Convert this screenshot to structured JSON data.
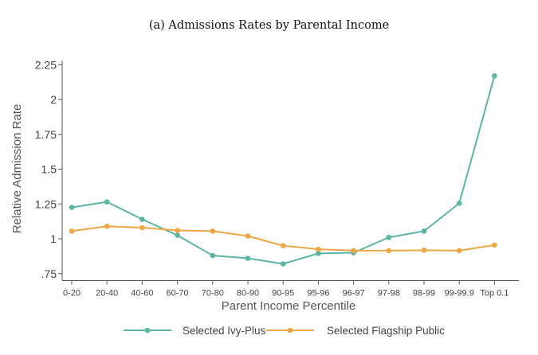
{
  "chart_data": {
    "type": "line",
    "title": "(a) Admissions Rates by Parental Income",
    "xlabel": "Parent Income Percentile",
    "ylabel": "Relative Admission Rate",
    "categories": [
      "0-20",
      "20-40",
      "40-60",
      "60-70",
      "70-80",
      "80-90",
      "90-95",
      "95-96",
      "96-97",
      "97-98",
      "98-99",
      "99-99.9",
      "Top 0.1"
    ],
    "ylim": [
      0.7,
      2.28
    ],
    "yticks": [
      0.75,
      1,
      1.25,
      1.5,
      1.75,
      2,
      2.25
    ],
    "ytick_labels": [
      ".75",
      "1",
      "1.25",
      "1.5",
      "1.75",
      "2",
      "2.25"
    ],
    "grid": false,
    "legend_position": "bottom",
    "series": [
      {
        "name": "Selected Ivy-Plus",
        "color": "#5bb5a2",
        "values": [
          1.225,
          1.265,
          1.14,
          1.025,
          0.88,
          0.86,
          0.82,
          0.895,
          0.9,
          1.01,
          1.055,
          1.255,
          2.17
        ]
      },
      {
        "name": "Selected Flagship Public",
        "color": "#eea744",
        "values": [
          1.055,
          1.09,
          1.08,
          1.06,
          1.055,
          1.02,
          0.95,
          0.925,
          0.915,
          0.915,
          0.918,
          0.915,
          0.955
        ]
      }
    ]
  }
}
